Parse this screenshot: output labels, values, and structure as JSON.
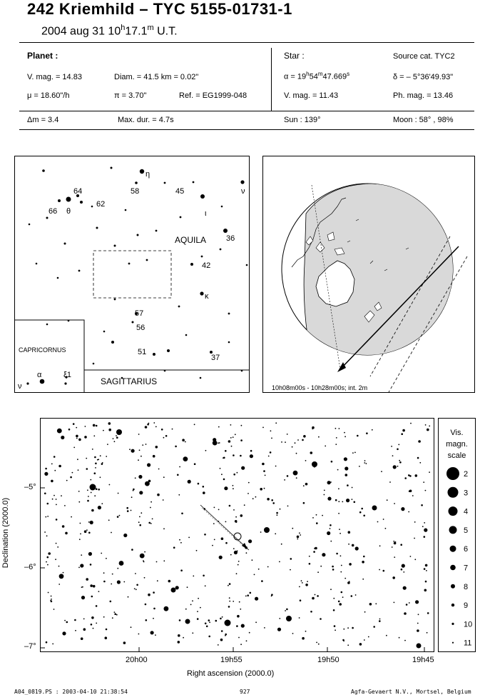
{
  "header": {
    "title": "242 Kriemhild  –  TYC 5155-01731-1",
    "date": "2004 aug 31  10",
    "date_h": "h",
    "date_min": "17.1",
    "date_m": "m",
    "date_ut": " U.T."
  },
  "planet": {
    "heading": "Planet :",
    "vmag": "V. mag. = 14.83",
    "diam": "Diam. = 41.5 km = 0.02\"",
    "mu": "μ = 18.60\"/h",
    "pi": "π =  3.70\"",
    "ref": "Ref. = EG1999-048",
    "dm": "Δm = 3.4",
    "maxdur": "Max. dur. = 4.7s"
  },
  "star": {
    "heading": "Star :",
    "source": "Source cat.  TYC2",
    "alpha_pre": "α = 19",
    "alpha_h": "h",
    "alpha_mid": "54",
    "alpha_m": "m",
    "alpha_sec": "47.669",
    "alpha_s": "s",
    "delta": "δ = – 5°36'49.93\"",
    "vmag": "V. mag. = 11.43",
    "phmag": "Ph. mag. = 13.46",
    "sun": "Sun : 139°",
    "moon": "Moon :  58° , 98%"
  },
  "finder": {
    "constellations": [
      "AQUILA",
      "CAPRICORNUS",
      "SAGITTARIUS"
    ],
    "star_labels": [
      "η",
      "64",
      "58",
      "45",
      "ν",
      "66",
      "θ",
      "62",
      "ι",
      "36",
      "42",
      "κ",
      "57",
      "56",
      "51",
      "37",
      "ν",
      "α",
      "ξ1"
    ]
  },
  "globe": {
    "caption": "10h08m00s - 10h28m00s; int.  2m"
  },
  "chart": {
    "xlabel": "Right ascension (2000.0)",
    "ylabel": "Declination (2000.0)",
    "xticks": [
      "20h00",
      "19h55",
      "19h50",
      "19h45"
    ],
    "yticks": [
      "–5°",
      "–6°",
      "–7°"
    ]
  },
  "scale": {
    "title_lines": [
      "Vis.",
      "magn.",
      "scale"
    ],
    "mags": [
      "2",
      "3",
      "4",
      "5",
      "6",
      "7",
      "8",
      "9",
      "10",
      "11"
    ]
  },
  "footer": {
    "left": "A04_0819.PS : 2003-04-10 21:38:54",
    "mid": "927",
    "right": "Agfa-Gevaert N.V., Mortsel, Belgium"
  }
}
